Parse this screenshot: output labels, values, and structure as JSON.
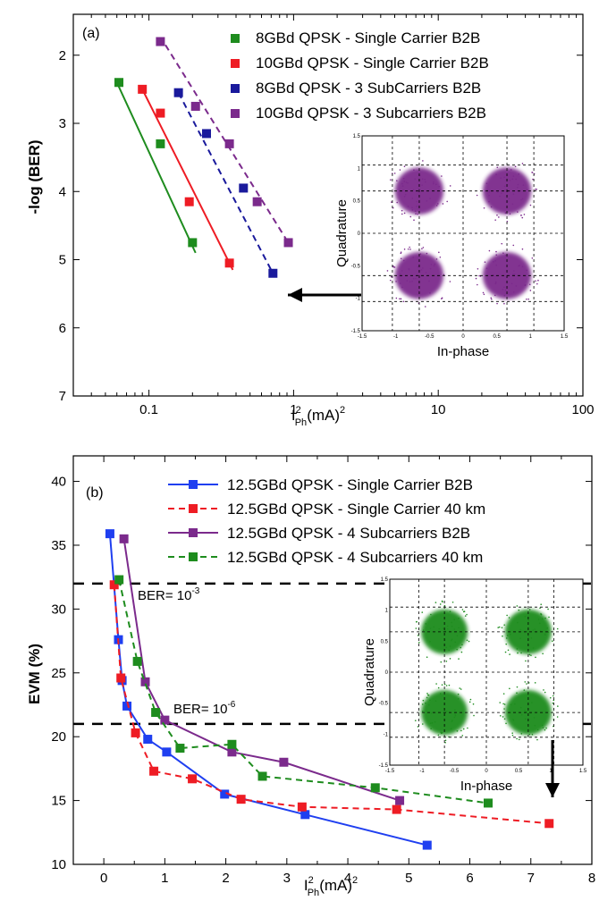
{
  "chart_data": [
    {
      "panel_label": "(a)",
      "type": "scatter",
      "xscale": "log",
      "xlim": [
        0.03,
        100
      ],
      "ylim": [
        7,
        1.4
      ],
      "x_ticks": [
        "0.1",
        "1",
        "10",
        "100"
      ],
      "y_ticks": [
        "2",
        "3",
        "4",
        "5",
        "6",
        "7"
      ],
      "ylabel": "-log (BER)",
      "xlabel_main": "I",
      "xlabel_sup": "2",
      "xlabel_sub": "Ph",
      "xlabel_tail": "(mA)",
      "xlabel_tail_sup": "2",
      "series": [
        {
          "name": "8GBd QPSK - Single Carrier B2B",
          "color": "#1e8c1e",
          "line": "solid",
          "x": [
            0.062,
            0.12,
            0.2
          ],
          "y": [
            2.4,
            3.3,
            4.75
          ],
          "fit": {
            "x": [
              0.06,
              0.21
            ],
            "y": [
              2.4,
              4.9
            ]
          }
        },
        {
          "name": "10GBd QPSK - Single Carrier B2B",
          "color": "#ee1c24",
          "line": "solid",
          "x": [
            0.09,
            0.12,
            0.19,
            0.36
          ],
          "y": [
            2.5,
            2.85,
            4.15,
            5.05
          ],
          "fit": {
            "x": [
              0.09,
              0.38
            ],
            "y": [
              2.5,
              5.15
            ]
          }
        },
        {
          "name": "8GBd QPSK - 3 SubCarriers B2B",
          "color": "#1a1a9c",
          "line": "dashed",
          "x": [
            0.16,
            0.25,
            0.45,
            0.72
          ],
          "y": [
            2.55,
            3.15,
            3.95,
            5.2
          ],
          "fit": {
            "x": [
              0.16,
              0.74
            ],
            "y": [
              2.55,
              5.25
            ]
          }
        },
        {
          "name": "10GBd QPSK - 3 Subcarriers B2B",
          "color": "#7b2a8c",
          "line": "dashed",
          "x": [
            0.12,
            0.21,
            0.36,
            0.56,
            0.92
          ],
          "y": [
            1.8,
            2.75,
            3.3,
            4.15,
            4.75
          ],
          "fit": {
            "x": [
              0.13,
              0.95
            ],
            "y": [
              1.85,
              4.8
            ]
          }
        }
      ],
      "inset": {
        "color": "#7b2a8c",
        "xlabel": "In-phase",
        "ylabel": "Quadrature",
        "ticks": [
          "-1.5",
          "-1",
          "-0.5",
          "0",
          "0.5",
          "1",
          "1.5"
        ]
      }
    },
    {
      "panel_label": "(b)",
      "type": "line",
      "xlim": [
        -0.5,
        8
      ],
      "ylim": [
        10,
        42
      ],
      "x_ticks": [
        "0",
        "1",
        "2",
        "3",
        "4",
        "5",
        "6",
        "7",
        "8"
      ],
      "y_ticks": [
        "10",
        "15",
        "20",
        "25",
        "30",
        "35",
        "40"
      ],
      "ylabel": "EVM (%)",
      "xlabel_main": "I",
      "xlabel_sup": "2",
      "xlabel_sub": "Ph",
      "xlabel_tail": "(mA)",
      "xlabel_tail_sup": "2",
      "series": [
        {
          "name": "12.5GBd QPSK - Single Carrier B2B",
          "color": "#1f3ff0",
          "line": "solid",
          "x": [
            0.1,
            0.24,
            0.3,
            0.38,
            0.72,
            1.03,
            1.98,
            3.3,
            5.3
          ],
          "y": [
            35.9,
            27.6,
            24.4,
            22.4,
            19.8,
            18.8,
            15.5,
            13.9,
            11.5
          ]
        },
        {
          "name": "12.5GBd QPSK - Single Carrier 40 km",
          "color": "#ee1c24",
          "line": "dashed",
          "x": [
            0.17,
            0.28,
            0.52,
            0.82,
            1.45,
            2.25,
            3.25,
            4.8,
            7.3
          ],
          "y": [
            31.9,
            24.6,
            20.3,
            17.3,
            16.7,
            15.1,
            14.5,
            14.3,
            13.2
          ]
        },
        {
          "name": "12.5GBd QPSK - 4 Subcarriers B2B",
          "color": "#7b2a8c",
          "line": "solid",
          "x": [
            0.33,
            0.68,
            1.0,
            2.1,
            2.95,
            4.85
          ],
          "y": [
            35.5,
            24.3,
            21.3,
            18.8,
            18.0,
            15.0
          ]
        },
        {
          "name": "12.5GBd QPSK - 4 Subcarriers 40 km",
          "color": "#1e8c1e",
          "line": "dashed",
          "x": [
            0.25,
            0.55,
            0.85,
            1.25,
            2.1,
            2.6,
            4.45,
            6.3
          ],
          "y": [
            32.3,
            25.9,
            21.9,
            19.1,
            19.4,
            16.9,
            16.0,
            14.8
          ]
        }
      ],
      "thresholds": [
        {
          "label_main": "BER= 10",
          "label_sup": "-3",
          "y": 32
        },
        {
          "label_main": "BER= 10",
          "label_sup": "-6",
          "y": 21
        }
      ],
      "inset": {
        "color": "#1e8c1e",
        "xlabel": "In-phase",
        "ylabel": "Quadrature",
        "ticks": [
          "-1.5",
          "-1",
          "-0.5",
          "0",
          "0.5",
          "1",
          "1.5"
        ]
      }
    }
  ]
}
